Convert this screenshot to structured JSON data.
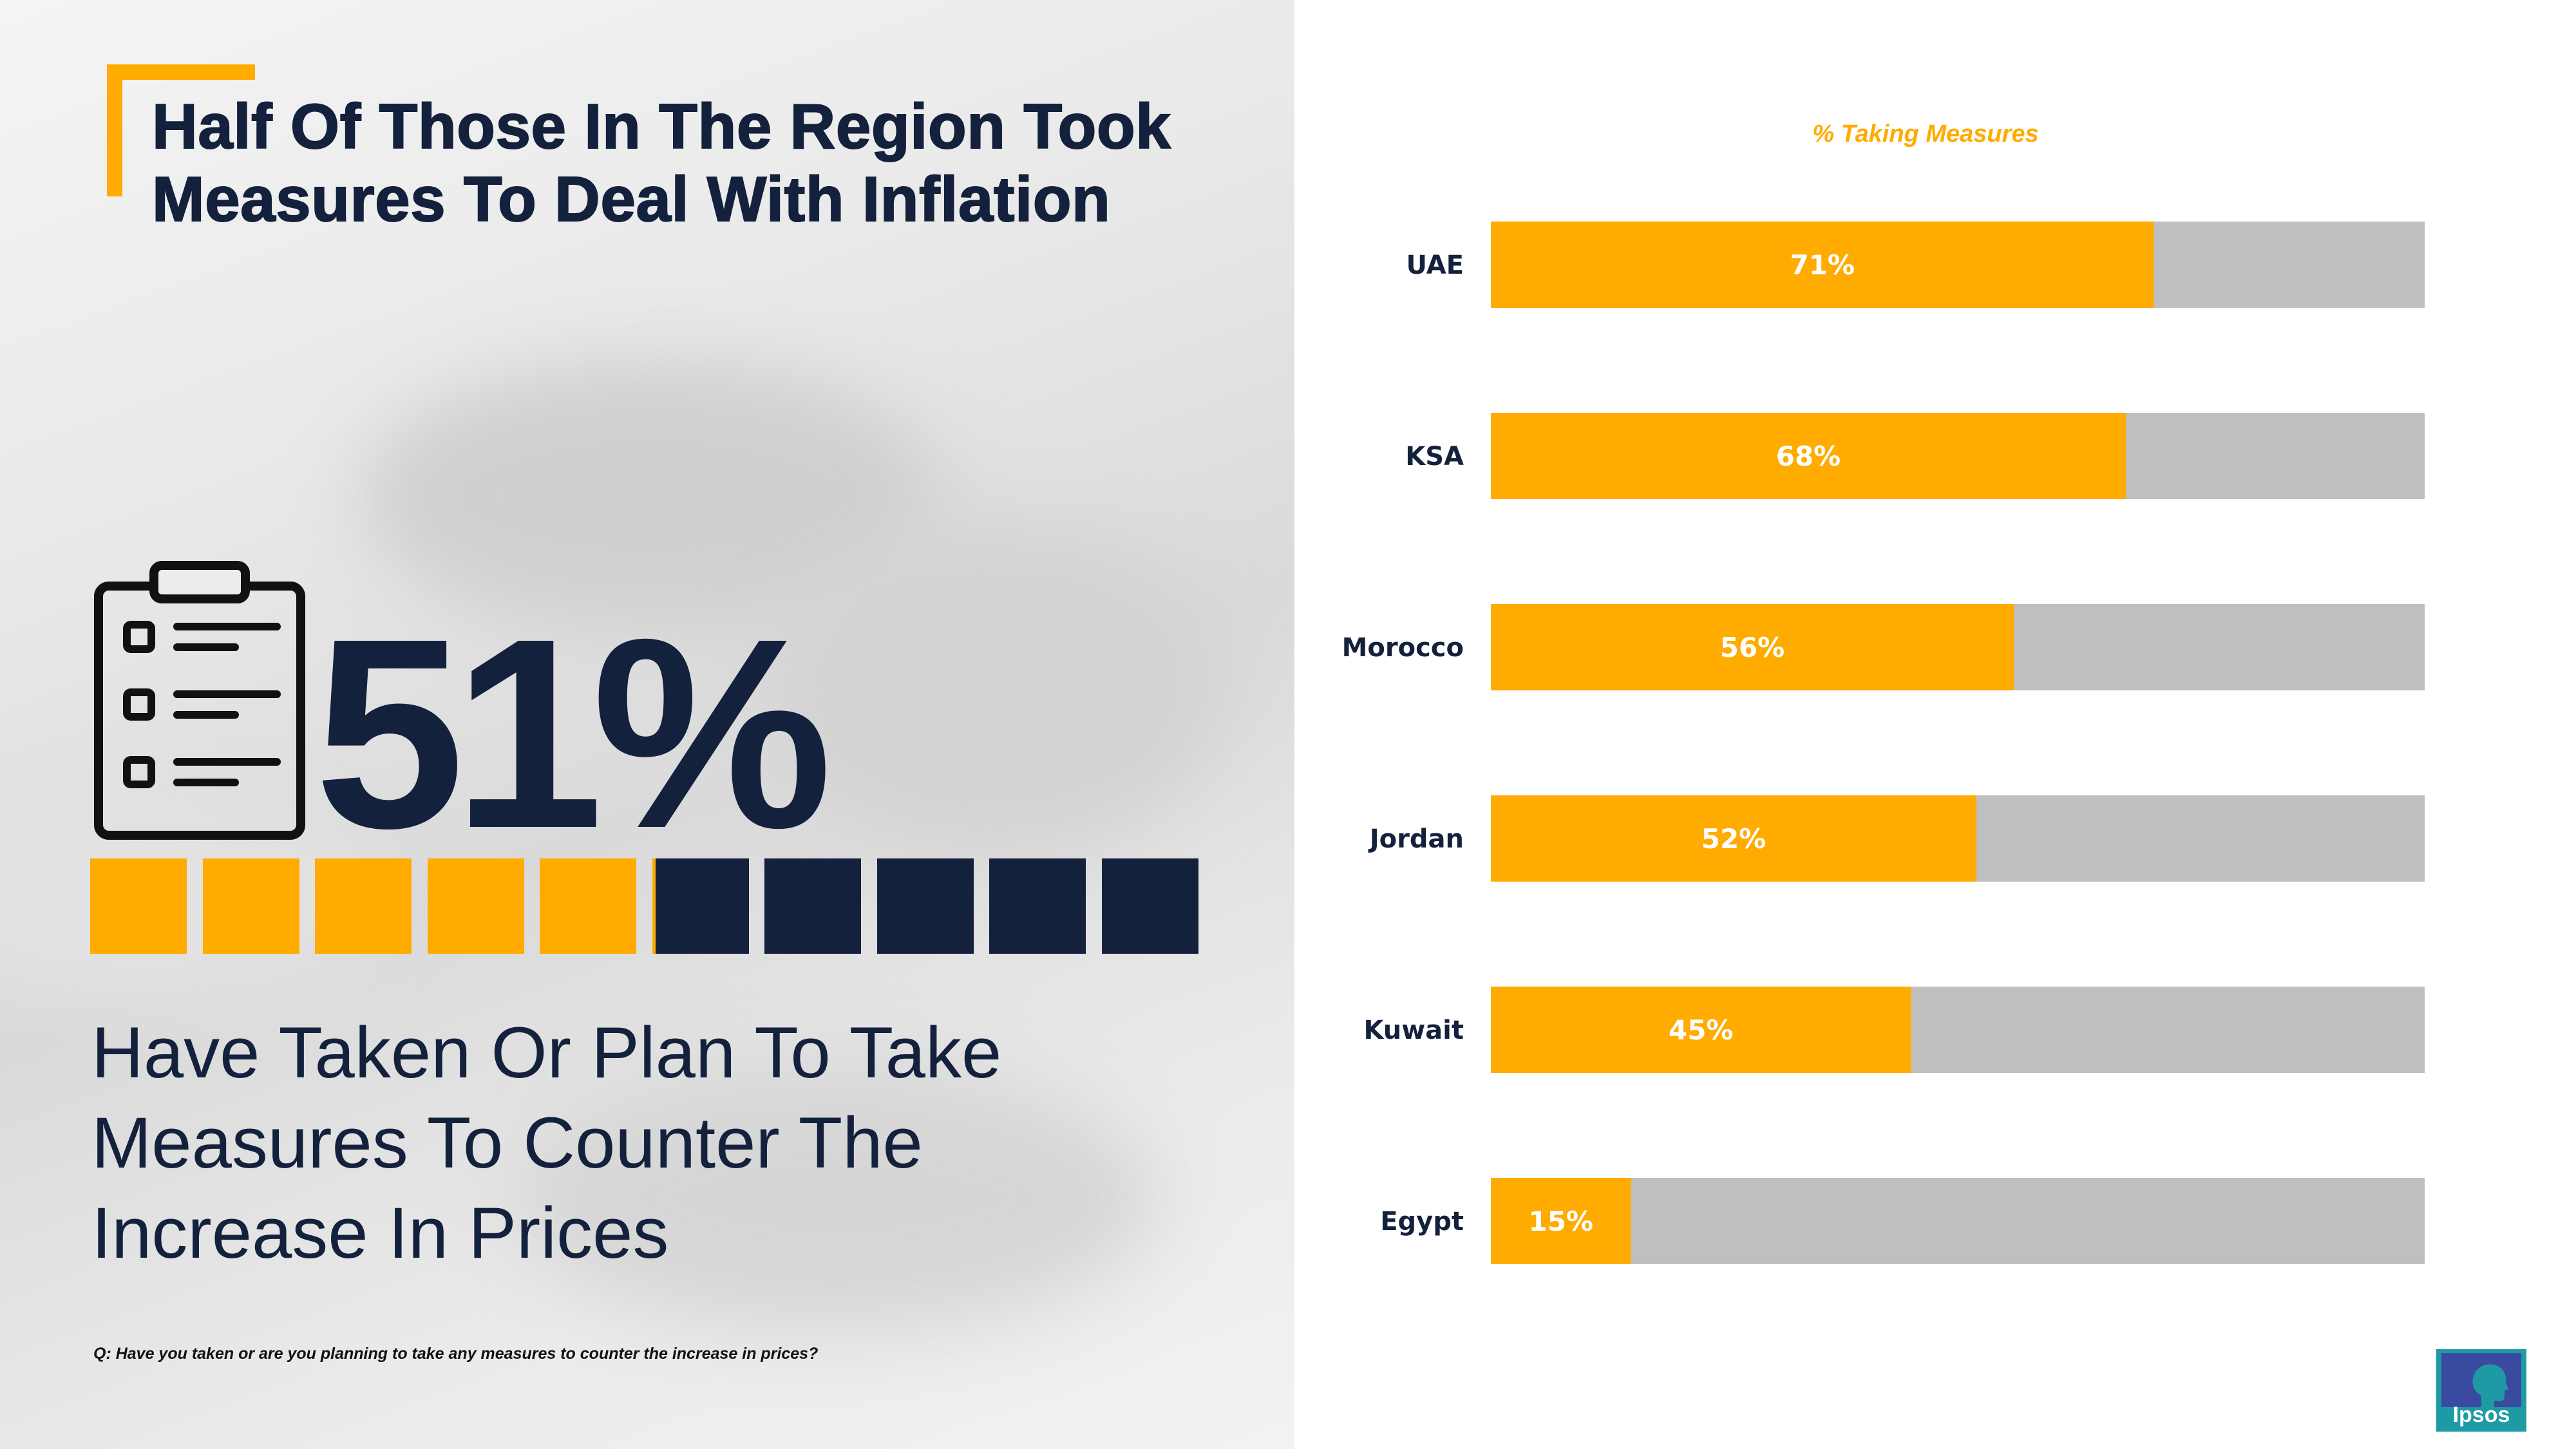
{
  "headline": {
    "title_line1": "Half Of Those In The Region Took",
    "title_line2": "Measures To Deal With Inflation"
  },
  "stat": {
    "value": "51%",
    "blocks_total": 10,
    "blocks_filled_fraction": 0.51,
    "subtitle_line1": "Have Taken Or Plan To Take",
    "subtitle_line2": "Measures To Counter The",
    "subtitle_line3": "Increase In Prices"
  },
  "icons": {
    "stat_icon": "clipboard-checklist-icon",
    "logo": "ipsos-logo"
  },
  "question": "Q: Have you taken or are you planning to take any measures to counter the increase in prices?",
  "logo": {
    "text": "Ipsos"
  },
  "colors": {
    "accent": "#ffab00",
    "navy": "#14213d",
    "bar_remainder": "#bfbfbf",
    "logo_teal": "#1e9aa5",
    "logo_blue": "#3a4aa0"
  },
  "chart_data": {
    "type": "bar",
    "orientation": "horizontal",
    "stacked_to_100": true,
    "title": "% Taking Measures",
    "categories": [
      "UAE",
      "KSA",
      "Morocco",
      "Jordan",
      "Kuwait",
      "Egypt"
    ],
    "values": [
      71,
      68,
      56,
      52,
      45,
      15
    ],
    "labels": [
      "71%",
      "68%",
      "56%",
      "52%",
      "45%",
      "15%"
    ],
    "xlim": [
      0,
      100
    ],
    "grid": false,
    "legend": "none"
  }
}
